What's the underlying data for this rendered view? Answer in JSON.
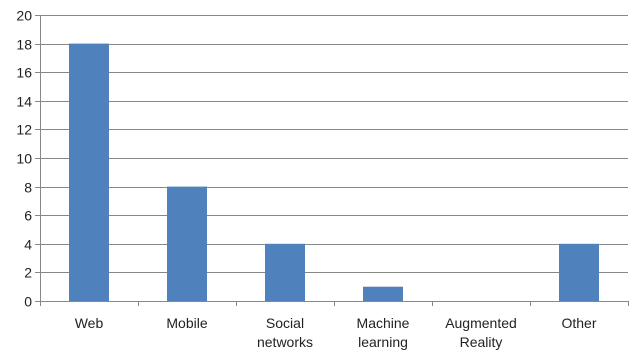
{
  "chart_data": {
    "type": "bar",
    "title": "",
    "xlabel": "",
    "ylabel": "",
    "categories": [
      "Web",
      "Mobile",
      "Social networks",
      "Machine learning",
      "Augmented Reality",
      "Other"
    ],
    "category_lines": [
      [
        "Web"
      ],
      [
        "Mobile"
      ],
      [
        "Social",
        "networks"
      ],
      [
        "Machine",
        "learning"
      ],
      [
        "Augmented",
        "Reality"
      ],
      [
        "Other"
      ]
    ],
    "values": [
      18,
      8,
      4,
      1,
      0,
      4
    ],
    "ylim": [
      0,
      20
    ],
    "yticks": [
      0,
      2,
      4,
      6,
      8,
      10,
      12,
      14,
      16,
      18,
      20
    ],
    "grid": true,
    "legend": "none",
    "bar_color": "#4f81bd"
  }
}
